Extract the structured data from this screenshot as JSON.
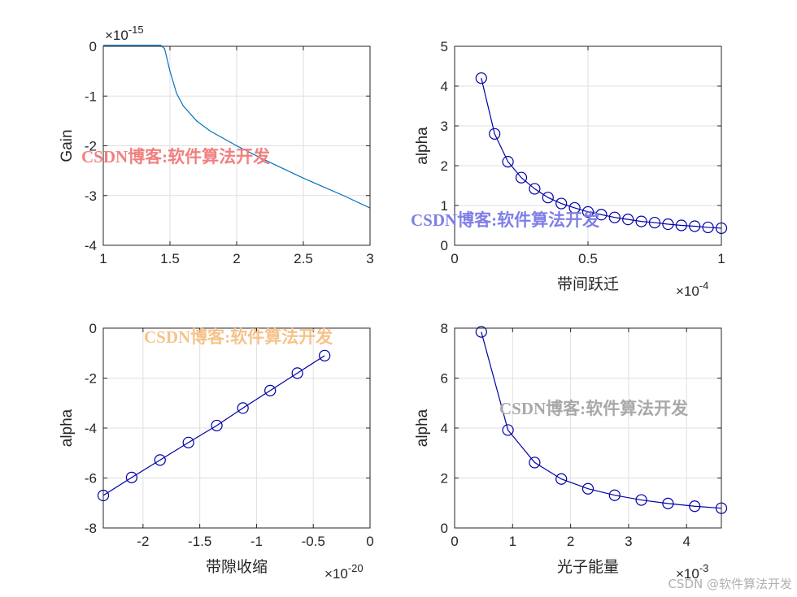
{
  "chart_data": [
    {
      "type": "line",
      "xlabel": "",
      "ylabel": "Gain",
      "xlim": [
        1,
        3
      ],
      "ylim": [
        -4,
        0
      ],
      "xticks": [
        "1",
        "1.5",
        "2",
        "2.5",
        "3"
      ],
      "yticks": [
        "-4",
        "-3",
        "-2",
        "-1",
        "0"
      ],
      "y_exponent": "-15",
      "grid": true,
      "series": [
        {
          "color": "#0072BD",
          "marker": "none",
          "x": [
            1.0,
            1.2,
            1.4,
            1.43,
            1.46,
            1.5,
            1.55,
            1.6,
            1.7,
            1.8,
            2.0,
            2.2,
            2.5,
            2.8,
            3.0
          ],
          "y": [
            0.02,
            0.02,
            0.02,
            0.02,
            -0.05,
            -0.5,
            -0.95,
            -1.2,
            -1.5,
            -1.7,
            -2.0,
            -2.27,
            -2.65,
            -3.0,
            -3.25
          ]
        }
      ]
    },
    {
      "type": "line",
      "xlabel": "带间跃迁",
      "ylabel": "alpha",
      "xlim": [
        0,
        1
      ],
      "ylim": [
        0,
        5
      ],
      "xticks": [
        "0",
        "0.5",
        "1"
      ],
      "yticks": [
        "0",
        "1",
        "2",
        "3",
        "4",
        "5"
      ],
      "x_exponent": "-4",
      "grid": true,
      "series": [
        {
          "color": "#0000A8",
          "marker": "circle",
          "x": [
            0.1,
            0.15,
            0.2,
            0.25,
            0.3,
            0.35,
            0.4,
            0.45,
            0.5,
            0.55,
            0.6,
            0.65,
            0.7,
            0.75,
            0.8,
            0.85,
            0.9,
            0.95,
            1.0
          ],
          "y": [
            4.2,
            2.8,
            2.1,
            1.7,
            1.42,
            1.2,
            1.05,
            0.94,
            0.84,
            0.77,
            0.7,
            0.65,
            0.6,
            0.57,
            0.53,
            0.5,
            0.48,
            0.45,
            0.43
          ]
        }
      ]
    },
    {
      "type": "line",
      "xlabel": "带隙收缩",
      "ylabel": "alpha",
      "xlim": [
        -2.35,
        0
      ],
      "ylim": [
        -8,
        0
      ],
      "xticks": [
        "-2",
        "-1.5",
        "-1",
        "-0.5",
        "0"
      ],
      "yticks": [
        "-8",
        "-6",
        "-4",
        "-2",
        "0"
      ],
      "x_exponent": "-20",
      "grid": true,
      "series": [
        {
          "color": "#0000A8",
          "marker": "circle",
          "x": [
            -2.35,
            -2.1,
            -1.85,
            -1.6,
            -1.35,
            -1.12,
            -0.88,
            -0.64,
            -0.4
          ],
          "y": [
            -6.7,
            -5.98,
            -5.28,
            -4.58,
            -3.9,
            -3.2,
            -2.5,
            -1.8,
            -1.1
          ]
        }
      ]
    },
    {
      "type": "line",
      "xlabel": "光子能量",
      "ylabel": "alpha",
      "xlim": [
        0,
        4.6
      ],
      "ylim": [
        0,
        8
      ],
      "xticks": [
        "0",
        "1",
        "2",
        "3",
        "4"
      ],
      "yticks": [
        "0",
        "2",
        "4",
        "6",
        "8"
      ],
      "x_exponent": "-3",
      "grid": true,
      "series": [
        {
          "color": "#0000A8",
          "marker": "circle",
          "x": [
            0.46,
            0.92,
            1.38,
            1.84,
            2.3,
            2.76,
            3.22,
            3.68,
            4.14,
            4.6
          ],
          "y": [
            7.85,
            3.92,
            2.62,
            1.96,
            1.57,
            1.31,
            1.12,
            0.98,
            0.87,
            0.79
          ]
        }
      ]
    }
  ],
  "watermarks": [
    {
      "text": "CSDN博客:软件算法开发",
      "color": "#F08080"
    },
    {
      "text": "CSDN博客:软件算法开发",
      "color": "#7F7FE8"
    },
    {
      "text": "CSDN博客:软件算法开发",
      "color": "#F5C38A"
    },
    {
      "text": "CSDN博客:软件算法开发",
      "color": "#A8A8A8"
    }
  ],
  "footer": "CSDN @软件算法开发"
}
